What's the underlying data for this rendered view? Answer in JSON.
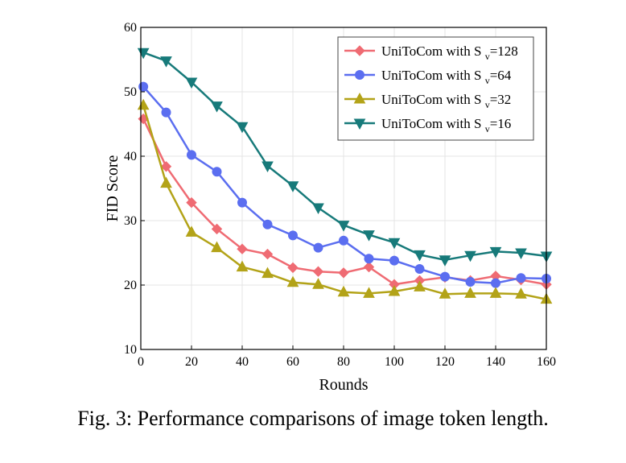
{
  "caption": "Fig. 3: Performance comparisons of image token length.",
  "chart_data": {
    "type": "line",
    "xlabel": "Rounds",
    "ylabel": "FID Score",
    "xlim": [
      0,
      160
    ],
    "ylim": [
      10,
      60
    ],
    "xticks": [
      0,
      20,
      40,
      60,
      80,
      100,
      120,
      140,
      160
    ],
    "yticks": [
      10,
      20,
      30,
      40,
      50,
      60
    ],
    "grid": true,
    "legend_position": "top-right",
    "x": [
      1,
      10,
      20,
      30,
      40,
      50,
      60,
      70,
      80,
      90,
      100,
      110,
      120,
      130,
      140,
      150,
      160
    ],
    "series": [
      {
        "name": "UniToCom with S",
        "subscript": "v",
        "suffix": "=128",
        "color": "#ef6b73",
        "marker": "diamond",
        "values": [
          45.8,
          38.4,
          32.8,
          28.7,
          25.6,
          24.8,
          22.7,
          22.1,
          21.9,
          22.8,
          20.1,
          20.7,
          21.2,
          20.7,
          21.4,
          20.8,
          20.1
        ]
      },
      {
        "name": "UniToCom with S",
        "subscript": "v",
        "suffix": "=64",
        "color": "#5b6ef0",
        "marker": "circle",
        "values": [
          50.8,
          46.8,
          40.2,
          37.6,
          32.8,
          29.4,
          27.7,
          25.8,
          26.9,
          24.1,
          23.8,
          22.5,
          21.3,
          20.5,
          20.3,
          21.1,
          21.0
        ]
      },
      {
        "name": "UniToCom with S",
        "subscript": "v",
        "suffix": "=32",
        "color": "#b3a318",
        "marker": "triangle-up",
        "values": [
          47.9,
          35.8,
          28.2,
          25.8,
          22.8,
          21.8,
          20.4,
          20.1,
          18.9,
          18.7,
          19.0,
          19.7,
          18.6,
          18.7,
          18.7,
          18.6,
          17.8
        ]
      },
      {
        "name": "UniToCom with S",
        "subscript": "v",
        "suffix": "=16",
        "color": "#177a7a",
        "marker": "triangle-down",
        "values": [
          56.1,
          54.8,
          51.5,
          47.8,
          44.6,
          38.5,
          35.4,
          32.0,
          29.3,
          27.8,
          26.6,
          24.7,
          23.9,
          24.6,
          25.2,
          25.0,
          24.5
        ]
      }
    ]
  }
}
